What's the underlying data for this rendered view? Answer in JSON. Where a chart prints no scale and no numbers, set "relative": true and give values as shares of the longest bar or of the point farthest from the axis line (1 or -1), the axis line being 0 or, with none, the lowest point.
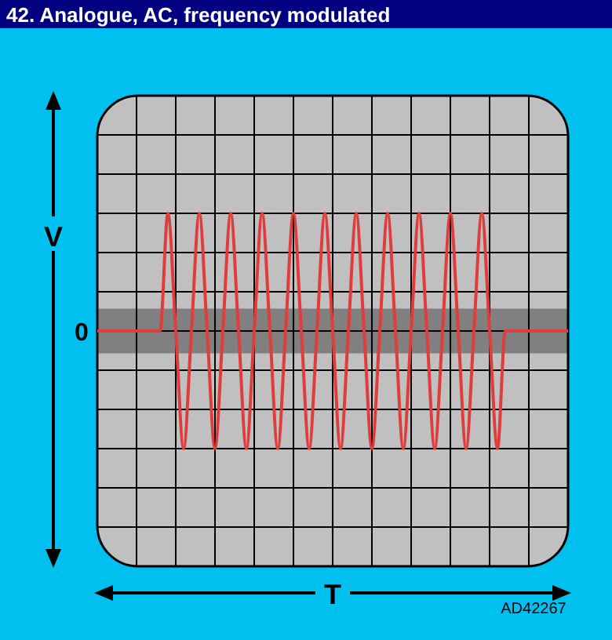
{
  "chart_data": {
    "type": "line",
    "title": "42. Analogue, AC, frequency modulated",
    "xlabel": "T",
    "ylabel": "V",
    "relative": true,
    "grid": true,
    "categories": [
      null,
      null,
      null,
      null,
      null,
      null,
      null,
      null,
      null,
      null,
      null,
      null,
      null,
      null,
      null,
      null,
      null,
      null,
      null,
      null,
      null,
      null,
      null,
      null,
      null,
      null,
      null,
      null,
      null,
      null,
      null,
      null,
      null,
      null,
      null,
      null,
      null,
      null,
      null,
      null,
      null,
      null,
      null,
      null,
      null,
      null,
      null,
      null,
      null,
      null,
      null,
      null,
      null,
      null,
      null,
      null,
      null,
      null,
      null,
      null,
      null
    ],
    "series": [
      {
        "color": "#e03c3c",
        "values": [
          0,
          0,
          0,
          0,
          0,
          0,
          0,
          0,
          0,
          1,
          0,
          -1,
          0,
          1,
          0,
          -1,
          0,
          1,
          0,
          -1,
          0,
          1,
          0,
          -1,
          0,
          1,
          0,
          -1,
          0,
          1,
          0,
          -1,
          0,
          1,
          0,
          -1,
          0,
          1,
          0,
          -1,
          0,
          1,
          0,
          -1,
          0,
          1,
          0,
          -1,
          0,
          1,
          0,
          -1,
          0,
          0,
          0,
          0,
          0,
          0,
          0,
          0,
          0
        ]
      }
    ],
    "bands": [
      {
        "axis": "y",
        "from": -0.19,
        "to": 0.19,
        "color": "#808080"
      }
    ],
    "annotations": [
      "0",
      "AD42267"
    ]
  }
}
